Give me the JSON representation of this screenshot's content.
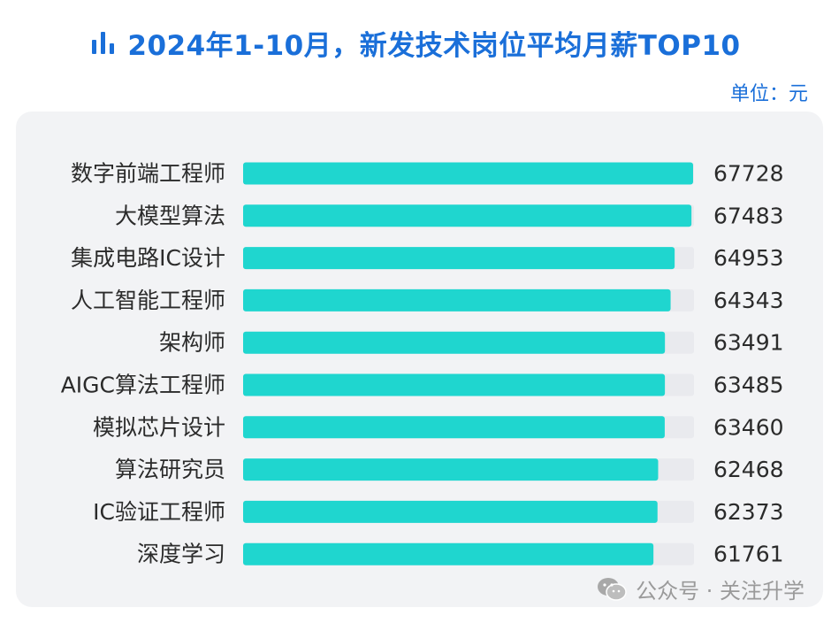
{
  "title": "2024年1-10月，新发技术岗位平均月薪TOP10",
  "unit": "单位：元",
  "watermark": "公众号 · 关注升学",
  "icons": {
    "title_icon": "bar-chart-icon",
    "watermark_icon": "wechat-icon"
  },
  "colors": {
    "title": "#1a6fd9",
    "bar": "#1fd6cf",
    "track": "#e9eaee",
    "panel": "#f2f3f5"
  },
  "chart_data": {
    "type": "bar",
    "orientation": "horizontal",
    "categories": [
      "数字前端工程师",
      "大模型算法",
      "集成电路IC设计",
      "人工智能工程师",
      "架构师",
      "AIGC算法工程师",
      "模拟芯片设计",
      "算法研究员",
      "IC验证工程师",
      "深度学习"
    ],
    "values": [
      67728,
      67483,
      64953,
      64343,
      63491,
      63485,
      63460,
      62468,
      62373,
      61761
    ],
    "value_labels": [
      "67728",
      "67483",
      "64953",
      "64343",
      "63491",
      "63485",
      "63460",
      "62468",
      "62373",
      "61761"
    ],
    "grid": false,
    "legend": "none"
  }
}
